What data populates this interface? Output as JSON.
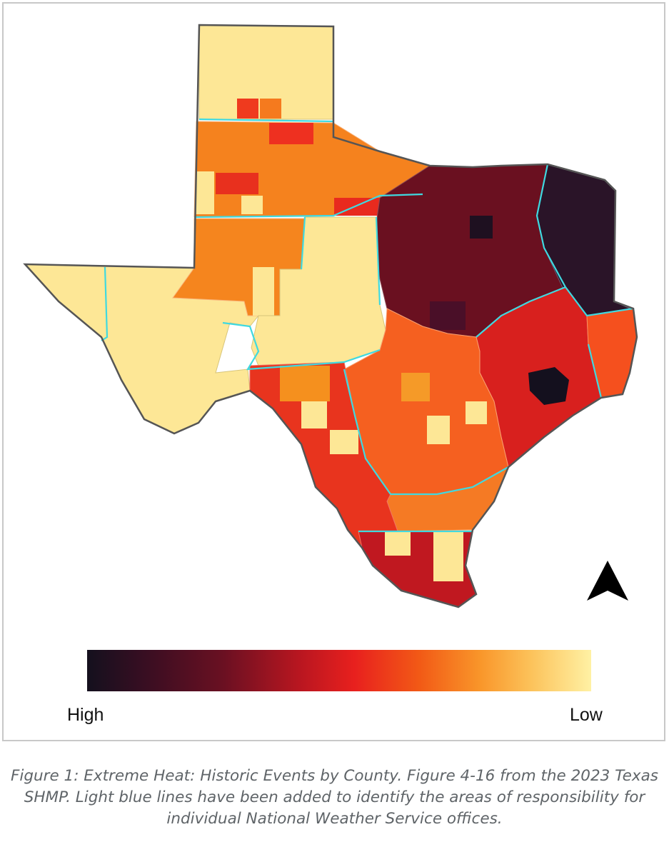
{
  "legend": {
    "high_label": "High",
    "low_label": "Low"
  },
  "north_arrow": {
    "icon": "north-arrow-icon"
  },
  "caption": "Figure 1: Extreme Heat: Historic Events by County.  Figure 4-16 from the 2023 Texas SHMP.  Light blue lines have been added to identify the areas of responsibility for individual National Weather Service offices.",
  "colors": {
    "scale_high": "#14101e",
    "scale_mid": "#e8201e",
    "scale_low": "#fff1a4",
    "nws_boundary": "#3fd9e0",
    "state_outline": "#555555"
  }
}
